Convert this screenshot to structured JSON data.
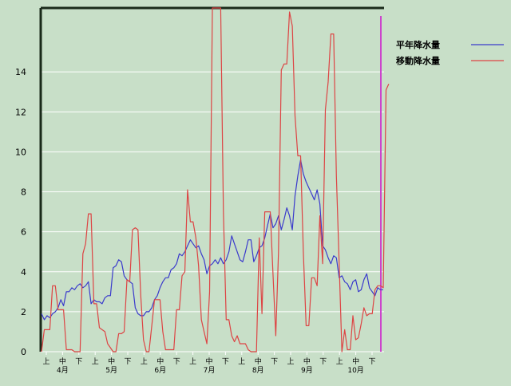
{
  "chart_data": {
    "type": "line",
    "title": "",
    "xlabel": "",
    "ylabel": "",
    "ylim": [
      0,
      17.2
    ],
    "yticks": [
      0,
      2,
      4,
      6,
      8,
      10,
      12,
      14
    ],
    "x_tick_groups": [
      {
        "month": "4月",
        "ticks": [
          "上",
          "中",
          "下"
        ]
      },
      {
        "month": "5月",
        "ticks": [
          "上",
          "中",
          "下"
        ]
      },
      {
        "month": "6月",
        "ticks": [
          "上",
          "中",
          "下"
        ]
      },
      {
        "month": "7月",
        "ticks": [
          "上",
          "中",
          "下"
        ]
      },
      {
        "month": "8月",
        "ticks": [
          "上",
          "中",
          "下"
        ]
      },
      {
        "month": "9月",
        "ticks": [
          "上",
          "中",
          "下"
        ]
      },
      {
        "month": "10月",
        "ticks": [
          "上",
          "中",
          "下"
        ]
      }
    ],
    "x_labels_shown": [
      "上",
      "中",
      "下",
      "上",
      "中",
      "下",
      "上",
      "中",
      "下",
      "上",
      "中",
      "下",
      "上",
      "中",
      "下",
      "上",
      "中",
      "下",
      "上",
      "中",
      "下"
    ],
    "grid": true,
    "legend": "top-right",
    "series": [
      {
        "name": "平年降水量",
        "color": "#3a3acc",
        "values": [
          1.9,
          1.6,
          1.8,
          1.7,
          1.9,
          2.0,
          2.2,
          2.6,
          2.3,
          3.0,
          3.0,
          3.2,
          3.1,
          3.3,
          3.4,
          3.2,
          3.3,
          3.5,
          2.4,
          2.6,
          2.5,
          2.5,
          2.4,
          2.7,
          2.8,
          2.8,
          4.2,
          4.3,
          4.6,
          4.5,
          3.8,
          3.6,
          3.5,
          3.4,
          2.2,
          1.9,
          1.8,
          1.8,
          2.0,
          2.0,
          2.2,
          2.6,
          2.8,
          3.2,
          3.5,
          3.7,
          3.7,
          4.1,
          4.2,
          4.4,
          4.9,
          4.8,
          5.0,
          5.3,
          5.6,
          5.4,
          5.2,
          5.3,
          4.9,
          4.6,
          3.9,
          4.3,
          4.4,
          4.6,
          4.4,
          4.7,
          4.4,
          4.6,
          5.0,
          5.8,
          5.4,
          5.0,
          4.6,
          4.5,
          5.0,
          5.6,
          5.6,
          4.5,
          4.8,
          5.2,
          5.3,
          5.7,
          6.3,
          6.9,
          6.2,
          6.4,
          6.8,
          6.1,
          6.6,
          7.2,
          6.8,
          6.1,
          7.8,
          8.8,
          9.6,
          8.9,
          8.5,
          8.2,
          7.9,
          7.6,
          8.1,
          7.4,
          5.3,
          5.1,
          4.7,
          4.4,
          4.8,
          4.7,
          3.7,
          3.8,
          3.5,
          3.4,
          3.1,
          3.5,
          3.6,
          3.0,
          3.1,
          3.6,
          3.9,
          3.2,
          3.0,
          2.8,
          3.2,
          3.1,
          3.1
        ]
      },
      {
        "name": "移動降水量",
        "color": "#dd4444",
        "values": [
          0.0,
          1.1,
          1.1,
          1.1,
          3.3,
          3.3,
          2.1,
          2.1,
          2.1,
          0.1,
          0.1,
          0.1,
          0.0,
          0.0,
          0.0,
          4.9,
          5.4,
          6.9,
          6.9,
          2.4,
          2.4,
          1.2,
          1.1,
          1.0,
          0.4,
          0.2,
          0.0,
          0.0,
          0.9,
          0.9,
          1.0,
          3.6,
          3.5,
          6.1,
          6.2,
          6.1,
          2.8,
          0.6,
          0.0,
          0.0,
          1.3,
          2.6,
          2.6,
          2.6,
          1.0,
          0.1,
          0.1,
          0.1,
          0.1,
          2.1,
          2.1,
          3.8,
          4.0,
          8.1,
          6.5,
          6.5,
          5.7,
          4.3,
          1.6,
          1.0,
          0.4,
          3.0,
          17.2,
          17.2,
          17.2,
          17.2,
          7.0,
          1.6,
          1.6,
          0.8,
          0.5,
          0.8,
          0.4,
          0.4,
          0.4,
          0.1,
          0.0,
          0.0,
          0.0,
          5.7,
          1.9,
          7.0,
          7.0,
          7.0,
          3.9,
          0.8,
          5.0,
          14.1,
          14.4,
          14.4,
          17.0,
          16.3,
          11.8,
          9.8,
          9.8,
          5.0,
          1.3,
          1.3,
          3.7,
          3.7,
          3.3,
          6.8,
          4.4,
          12.1,
          13.5,
          15.9,
          15.9,
          8.8,
          4.4,
          0.0,
          1.1,
          0.1,
          0.1,
          1.8,
          0.6,
          0.7,
          1.4,
          2.2,
          1.8,
          1.9,
          1.9,
          3.1,
          3.3,
          3.3,
          3.2,
          13.1,
          13.4
        ]
      }
    ]
  }
}
